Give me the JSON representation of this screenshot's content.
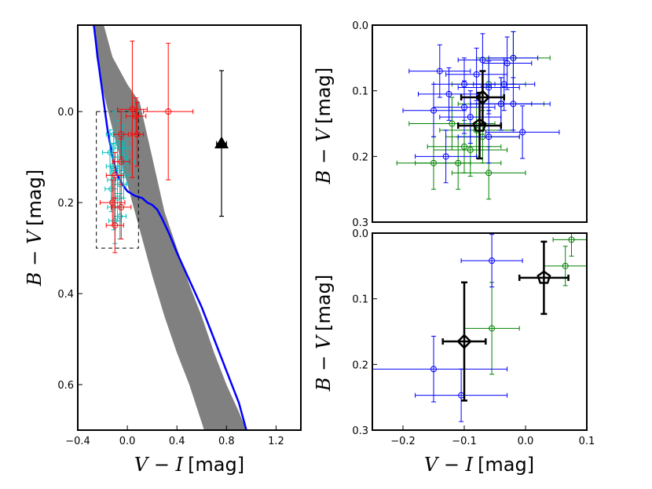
{
  "chart_data": [
    {
      "panel": "left",
      "type": "scatter",
      "xlabel": {
        "var": "V − I",
        "unit": "[mag]"
      },
      "ylabel": {
        "var": "B − V",
        "unit": "[mag]"
      },
      "xlim": [
        -0.4,
        1.4
      ],
      "ylim": [
        0.7,
        -0.19
      ],
      "y_inverted": true,
      "xticks": [
        -0.4,
        0.0,
        0.4,
        0.8,
        1.2
      ],
      "yticks": [
        0.0,
        0.2,
        0.4,
        0.6
      ],
      "xtick_labels": [
        "−0.4",
        "0.0",
        "0.4",
        "0.8",
        "1.2"
      ],
      "ytick_labels": [
        "0.0",
        "0.2",
        "0.4",
        "0.6"
      ],
      "band": {
        "color": "#808080",
        "upper": [
          [
            -0.19,
            -0.19
          ],
          [
            -0.12,
            -0.12
          ],
          [
            0.0,
            -0.06
          ],
          [
            0.1,
            -0.02
          ],
          [
            0.2,
            0.1
          ],
          [
            0.3,
            0.22
          ],
          [
            0.4,
            0.3
          ],
          [
            0.5,
            0.38
          ],
          [
            0.6,
            0.45
          ],
          [
            0.7,
            0.53
          ],
          [
            0.8,
            0.6
          ],
          [
            0.9,
            0.66
          ],
          [
            0.96,
            0.7
          ]
        ],
        "lower": [
          [
            0.62,
            0.7
          ],
          [
            0.5,
            0.6
          ],
          [
            0.4,
            0.53
          ],
          [
            0.3,
            0.45
          ],
          [
            0.2,
            0.36
          ],
          [
            0.1,
            0.26
          ],
          [
            0.0,
            0.16
          ],
          [
            -0.1,
            0.06
          ],
          [
            -0.2,
            -0.05
          ],
          [
            -0.25,
            -0.12
          ],
          [
            -0.27,
            -0.19
          ]
        ]
      },
      "blue_curve": {
        "color": "#0000ff",
        "points": [
          [
            -0.27,
            -0.19
          ],
          [
            -0.24,
            -0.12
          ],
          [
            -0.2,
            -0.04
          ],
          [
            -0.16,
            0.04
          ],
          [
            -0.12,
            0.1
          ],
          [
            -0.08,
            0.14
          ],
          [
            -0.04,
            0.16
          ],
          [
            0.0,
            0.175
          ],
          [
            0.06,
            0.185
          ],
          [
            0.12,
            0.19
          ],
          [
            0.16,
            0.2
          ],
          [
            0.2,
            0.205
          ],
          [
            0.24,
            0.215
          ],
          [
            0.28,
            0.235
          ],
          [
            0.34,
            0.27
          ],
          [
            0.4,
            0.31
          ],
          [
            0.5,
            0.37
          ],
          [
            0.6,
            0.43
          ],
          [
            0.7,
            0.5
          ],
          [
            0.8,
            0.57
          ],
          [
            0.9,
            0.64
          ],
          [
            0.96,
            0.7
          ]
        ]
      },
      "selection_box": {
        "x": [
          -0.25,
          0.09
        ],
        "y": [
          0.0,
          0.3
        ],
        "style": "dashed"
      },
      "red_points": {
        "color": "#ff0000",
        "points": [
          {
            "x": 0.33,
            "y": 0.0,
            "xerr": 0.2,
            "yerr": 0.15
          },
          {
            "x": 0.04,
            "y": -0.005,
            "xerr": 0.12,
            "yerr": 0.15
          },
          {
            "x": 0.07,
            "y": 0.01,
            "xerr": 0.08,
            "yerr": 0.04
          },
          {
            "x": 0.08,
            "y": 0.05,
            "xerr": 0.05,
            "yerr": 0.07
          },
          {
            "x": -0.05,
            "y": 0.05,
            "xerr": 0.06,
            "yerr": 0.05
          },
          {
            "x": -0.05,
            "y": 0.11,
            "xerr": 0.07,
            "yerr": 0.05
          },
          {
            "x": -0.1,
            "y": 0.14,
            "xerr": 0.07,
            "yerr": 0.05
          },
          {
            "x": -0.12,
            "y": 0.2,
            "xerr": 0.1,
            "yerr": 0.05
          },
          {
            "x": -0.05,
            "y": 0.21,
            "xerr": 0.08,
            "yerr": 0.07
          },
          {
            "x": -0.1,
            "y": 0.25,
            "xerr": 0.07,
            "yerr": 0.06
          }
        ]
      },
      "cyan_points": {
        "color": "#00bfbf",
        "points": [
          {
            "x": -0.11,
            "y": 0.05,
            "xerr": 0.06,
            "yerr": 0.05
          },
          {
            "x": -0.08,
            "y": 0.07,
            "xerr": 0.06,
            "yerr": 0.05
          },
          {
            "x": -0.04,
            "y": 0.08,
            "xerr": 0.06,
            "yerr": 0.05
          },
          {
            "x": -0.14,
            "y": 0.09,
            "xerr": 0.06,
            "yerr": 0.05
          },
          {
            "x": -0.06,
            "y": 0.1,
            "xerr": 0.05,
            "yerr": 0.05
          },
          {
            "x": 0.0,
            "y": 0.11,
            "xerr": 0.06,
            "yerr": 0.05
          },
          {
            "x": -0.12,
            "y": 0.12,
            "xerr": 0.05,
            "yerr": 0.05
          },
          {
            "x": -0.08,
            "y": 0.13,
            "xerr": 0.05,
            "yerr": 0.05
          },
          {
            "x": -0.03,
            "y": 0.14,
            "xerr": 0.05,
            "yerr": 0.05
          },
          {
            "x": -0.11,
            "y": 0.15,
            "xerr": 0.05,
            "yerr": 0.05
          },
          {
            "x": -0.06,
            "y": 0.16,
            "xerr": 0.05,
            "yerr": 0.05
          },
          {
            "x": -0.13,
            "y": 0.17,
            "xerr": 0.05,
            "yerr": 0.05
          },
          {
            "x": -0.08,
            "y": 0.19,
            "xerr": 0.05,
            "yerr": 0.05
          },
          {
            "x": -0.11,
            "y": 0.21,
            "xerr": 0.05,
            "yerr": 0.05
          },
          {
            "x": -0.06,
            "y": 0.23,
            "xerr": 0.05,
            "yerr": 0.05
          },
          {
            "x": -0.1,
            "y": 0.24,
            "xerr": 0.05,
            "yerr": 0.05
          }
        ]
      },
      "black_triangle": {
        "x": 0.76,
        "y": 0.07,
        "xerr": 0.04,
        "yerr": 0.16
      }
    },
    {
      "panel": "top-right",
      "type": "scatter",
      "ylabel": {
        "var": "B − V",
        "unit": "[mag]"
      },
      "xlim": [
        -0.25,
        0.1
      ],
      "ylim": [
        0.3,
        0.0
      ],
      "y_inverted": true,
      "yticks": [
        0.0,
        0.1,
        0.2,
        0.3
      ],
      "ytick_labels": [
        "0.0",
        "0.1",
        "0.2",
        "0.3"
      ],
      "blue_points": {
        "color": "#0000ff",
        "points": [
          {
            "x": -0.07,
            "y": 0.053,
            "xerr": 0.04,
            "yerr": 0.04
          },
          {
            "x": -0.02,
            "y": 0.05,
            "xerr": 0.04,
            "yerr": 0.04
          },
          {
            "x": -0.03,
            "y": 0.058,
            "xerr": 0.04,
            "yerr": 0.04
          },
          {
            "x": -0.14,
            "y": 0.07,
            "xerr": 0.05,
            "yerr": 0.04
          },
          {
            "x": -0.08,
            "y": 0.075,
            "xerr": 0.05,
            "yerr": 0.04
          },
          {
            "x": -0.1,
            "y": 0.09,
            "xerr": 0.05,
            "yerr": 0.04
          },
          {
            "x": -0.06,
            "y": 0.095,
            "xerr": 0.05,
            "yerr": 0.04
          },
          {
            "x": -0.035,
            "y": 0.09,
            "xerr": 0.05,
            "yerr": 0.04
          },
          {
            "x": -0.125,
            "y": 0.105,
            "xerr": 0.05,
            "yerr": 0.04
          },
          {
            "x": -0.04,
            "y": 0.12,
            "xerr": 0.05,
            "yerr": 0.04
          },
          {
            "x": -0.02,
            "y": 0.12,
            "xerr": 0.06,
            "yerr": 0.04
          },
          {
            "x": -0.1,
            "y": 0.125,
            "xerr": 0.05,
            "yerr": 0.04
          },
          {
            "x": -0.15,
            "y": 0.13,
            "xerr": 0.05,
            "yerr": 0.04
          },
          {
            "x": -0.09,
            "y": 0.14,
            "xerr": 0.05,
            "yerr": 0.04
          },
          {
            "x": -0.005,
            "y": 0.163,
            "xerr": 0.06,
            "yerr": 0.04
          },
          {
            "x": -0.06,
            "y": 0.17,
            "xerr": 0.05,
            "yerr": 0.04
          },
          {
            "x": -0.13,
            "y": 0.2,
            "xerr": 0.05,
            "yerr": 0.04
          }
        ]
      },
      "green_points": {
        "color": "#008000",
        "points": [
          {
            "x": -0.02,
            "y": 0.05,
            "xerr": 0.06,
            "yerr": 0.04
          },
          {
            "x": -0.06,
            "y": 0.09,
            "xerr": 0.06,
            "yerr": 0.04
          },
          {
            "x": -0.04,
            "y": 0.12,
            "xerr": 0.07,
            "yerr": 0.04
          },
          {
            "x": -0.12,
            "y": 0.15,
            "xerr": 0.07,
            "yerr": 0.04
          },
          {
            "x": -0.08,
            "y": 0.16,
            "xerr": 0.06,
            "yerr": 0.04
          },
          {
            "x": -0.07,
            "y": 0.17,
            "xerr": 0.06,
            "yerr": 0.04
          },
          {
            "x": -0.1,
            "y": 0.185,
            "xerr": 0.06,
            "yerr": 0.04
          },
          {
            "x": -0.09,
            "y": 0.19,
            "xerr": 0.06,
            "yerr": 0.04
          },
          {
            "x": -0.15,
            "y": 0.21,
            "xerr": 0.06,
            "yerr": 0.04
          },
          {
            "x": -0.11,
            "y": 0.21,
            "xerr": 0.07,
            "yerr": 0.04
          },
          {
            "x": -0.06,
            "y": 0.225,
            "xerr": 0.06,
            "yerr": 0.04
          }
        ]
      },
      "black_diamond": {
        "x": -0.07,
        "y": 0.11,
        "xerr": 0.035,
        "yerr": 0.04
      },
      "black_pentagon": {
        "x": -0.075,
        "y": 0.153,
        "xerr": 0.035,
        "yerr": 0.05
      }
    },
    {
      "panel": "bottom-right",
      "type": "scatter",
      "xlabel": {
        "var": "V − I",
        "unit": "[mag]"
      },
      "ylabel": {
        "var": "B − V",
        "unit": "[mag]"
      },
      "xlim": [
        -0.25,
        0.1
      ],
      "ylim": [
        0.3,
        0.0
      ],
      "y_inverted": true,
      "xticks": [
        -0.2,
        -0.1,
        0.0,
        0.1
      ],
      "xtick_labels": [
        "−0.2",
        "−0.1",
        "0.0",
        "0.1"
      ],
      "yticks": [
        0.0,
        0.1,
        0.2,
        0.3
      ],
      "ytick_labels": [
        "0.0",
        "0.1",
        "0.2",
        "0.3"
      ],
      "blue_points": {
        "color": "#0000ff",
        "points": [
          {
            "x": -0.055,
            "y": 0.042,
            "xerr": 0.05,
            "yerr": 0.04
          },
          {
            "x": -0.15,
            "y": 0.207,
            "xerr": 0.12,
            "yerr": 0.05
          },
          {
            "x": -0.105,
            "y": 0.247,
            "xerr": 0.075,
            "yerr": 0.04
          }
        ]
      },
      "green_points": {
        "color": "#008000",
        "points": [
          {
            "x": 0.075,
            "y": 0.01,
            "xerr": 0.03,
            "yerr": 0.025
          },
          {
            "x": 0.065,
            "y": 0.05,
            "xerr": 0.035,
            "yerr": 0.03
          },
          {
            "x": -0.055,
            "y": 0.145,
            "xerr": 0.045,
            "yerr": 0.07
          }
        ]
      },
      "black_pentagon": {
        "x": 0.03,
        "y": 0.068,
        "xerr": 0.04,
        "yerr": 0.055
      },
      "black_diamond": {
        "x": -0.1,
        "y": 0.165,
        "xerr": 0.035,
        "yerr": 0.09
      }
    }
  ]
}
